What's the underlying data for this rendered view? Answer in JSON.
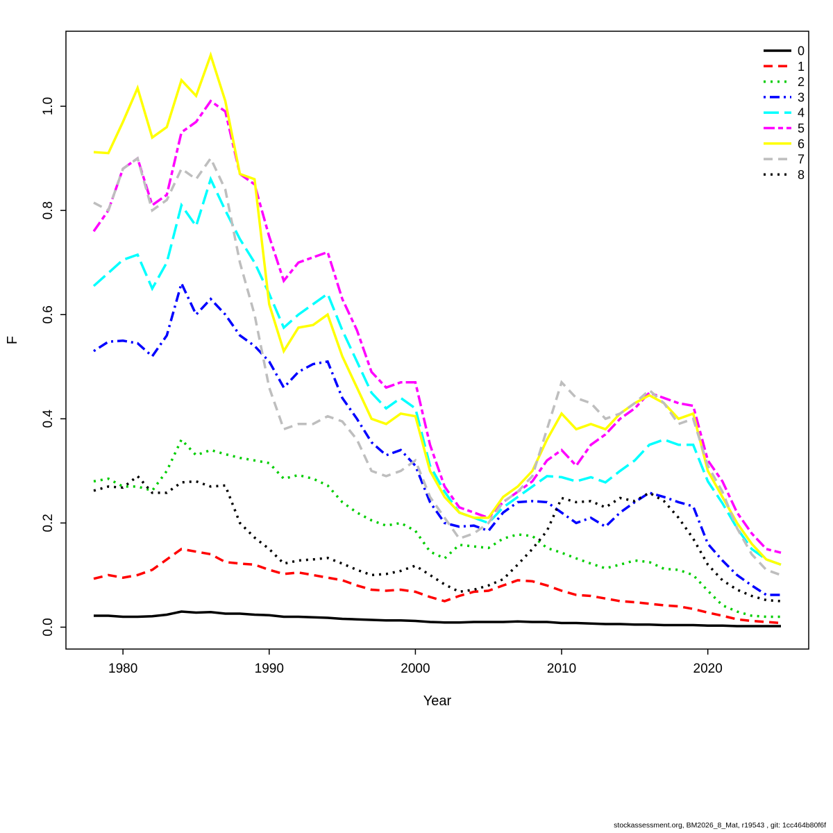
{
  "footer": "stockassessment.org, BM2026_8_Mat, r19543 , git: 1cc464b80f6f",
  "chart_data": {
    "type": "line",
    "title": "",
    "xlabel": "Year",
    "ylabel": "F",
    "x_ticks": [
      1980,
      1990,
      2000,
      2010,
      2020
    ],
    "y_ticks": [
      0.0,
      0.2,
      0.4,
      0.6,
      0.8,
      1.0
    ],
    "xlim": [
      1976.1,
      2026.9
    ],
    "ylim": [
      -0.042,
      1.144
    ],
    "grid": false,
    "legend_position": "topright",
    "x": [
      1978,
      1979,
      1980,
      1981,
      1982,
      1983,
      1984,
      1985,
      1986,
      1987,
      1988,
      1989,
      1990,
      1991,
      1992,
      1993,
      1994,
      1995,
      1996,
      1997,
      1998,
      1999,
      2000,
      2001,
      2002,
      2003,
      2004,
      2005,
      2006,
      2007,
      2008,
      2009,
      2010,
      2011,
      2012,
      2013,
      2014,
      2015,
      2016,
      2017,
      2018,
      2019,
      2020,
      2021,
      2022,
      2023,
      2024,
      2025
    ],
    "series": [
      {
        "name": "0",
        "color": "#000000",
        "linetype": "solid",
        "values": [
          0.022,
          0.022,
          0.02,
          0.02,
          0.021,
          0.024,
          0.03,
          0.028,
          0.029,
          0.026,
          0.026,
          0.024,
          0.023,
          0.02,
          0.02,
          0.019,
          0.018,
          0.016,
          0.015,
          0.014,
          0.013,
          0.013,
          0.012,
          0.01,
          0.009,
          0.009,
          0.01,
          0.01,
          0.01,
          0.011,
          0.01,
          0.01,
          0.008,
          0.008,
          0.007,
          0.006,
          0.006,
          0.005,
          0.005,
          0.004,
          0.004,
          0.004,
          0.003,
          0.003,
          0.002,
          0.002,
          0.002,
          0.002
        ]
      },
      {
        "name": "1",
        "color": "#FF0000",
        "linetype": "dashed",
        "values": [
          0.093,
          0.1,
          0.095,
          0.1,
          0.11,
          0.13,
          0.15,
          0.145,
          0.14,
          0.125,
          0.122,
          0.12,
          0.11,
          0.102,
          0.105,
          0.1,
          0.095,
          0.09,
          0.08,
          0.072,
          0.07,
          0.072,
          0.068,
          0.058,
          0.05,
          0.06,
          0.068,
          0.07,
          0.08,
          0.09,
          0.088,
          0.08,
          0.07,
          0.062,
          0.06,
          0.055,
          0.05,
          0.048,
          0.045,
          0.042,
          0.04,
          0.035,
          0.028,
          0.022,
          0.015,
          0.012,
          0.01,
          0.008
        ]
      },
      {
        "name": "2",
        "color": "#00CD00",
        "linetype": "dotted",
        "values": [
          0.28,
          0.285,
          0.27,
          0.27,
          0.262,
          0.3,
          0.36,
          0.33,
          0.34,
          0.332,
          0.325,
          0.32,
          0.315,
          0.285,
          0.292,
          0.285,
          0.272,
          0.24,
          0.22,
          0.205,
          0.195,
          0.2,
          0.185,
          0.145,
          0.132,
          0.158,
          0.155,
          0.152,
          0.17,
          0.178,
          0.175,
          0.152,
          0.143,
          0.132,
          0.122,
          0.113,
          0.12,
          0.128,
          0.125,
          0.112,
          0.11,
          0.1,
          0.07,
          0.042,
          0.03,
          0.022,
          0.02,
          0.02
        ]
      },
      {
        "name": "3",
        "color": "#0000FF",
        "linetype": "dotdash",
        "values": [
          0.53,
          0.548,
          0.55,
          0.545,
          0.52,
          0.56,
          0.66,
          0.6,
          0.63,
          0.6,
          0.56,
          0.54,
          0.51,
          0.46,
          0.49,
          0.505,
          0.51,
          0.44,
          0.4,
          0.355,
          0.33,
          0.34,
          0.31,
          0.24,
          0.2,
          0.193,
          0.195,
          0.185,
          0.22,
          0.24,
          0.242,
          0.24,
          0.22,
          0.2,
          0.21,
          0.193,
          0.22,
          0.24,
          0.258,
          0.25,
          0.24,
          0.232,
          0.16,
          0.128,
          0.1,
          0.08,
          0.062,
          0.062
        ]
      },
      {
        "name": "4",
        "color": "#00FFFF",
        "linetype": "longdash",
        "values": [
          0.655,
          0.68,
          0.705,
          0.715,
          0.65,
          0.7,
          0.81,
          0.77,
          0.86,
          0.8,
          0.745,
          0.7,
          0.64,
          0.575,
          0.6,
          0.62,
          0.64,
          0.57,
          0.51,
          0.45,
          0.42,
          0.44,
          0.42,
          0.31,
          0.26,
          0.22,
          0.21,
          0.2,
          0.23,
          0.25,
          0.27,
          0.29,
          0.288,
          0.28,
          0.288,
          0.278,
          0.3,
          0.32,
          0.35,
          0.36,
          0.35,
          0.35,
          0.28,
          0.238,
          0.19,
          0.15,
          0.13,
          0.12
        ]
      },
      {
        "name": "5",
        "color": "#FF00FF",
        "linetype": "twodash",
        "values": [
          0.76,
          0.8,
          0.88,
          0.9,
          0.81,
          0.83,
          0.95,
          0.97,
          1.01,
          0.99,
          0.87,
          0.85,
          0.75,
          0.665,
          0.7,
          0.71,
          0.72,
          0.63,
          0.57,
          0.49,
          0.46,
          0.47,
          0.47,
          0.35,
          0.27,
          0.23,
          0.22,
          0.21,
          0.24,
          0.26,
          0.28,
          0.32,
          0.34,
          0.31,
          0.35,
          0.37,
          0.4,
          0.42,
          0.45,
          0.44,
          0.43,
          0.425,
          0.32,
          0.28,
          0.22,
          0.18,
          0.15,
          0.143
        ]
      },
      {
        "name": "6",
        "color": "#FFFF00",
        "linetype": "solid",
        "values": [
          0.912,
          0.91,
          0.97,
          1.035,
          0.94,
          0.96,
          1.05,
          1.02,
          1.098,
          1.01,
          0.87,
          0.86,
          0.62,
          0.53,
          0.575,
          0.58,
          0.6,
          0.52,
          0.46,
          0.4,
          0.39,
          0.41,
          0.405,
          0.3,
          0.25,
          0.22,
          0.21,
          0.21,
          0.25,
          0.27,
          0.3,
          0.36,
          0.41,
          0.38,
          0.39,
          0.38,
          0.41,
          0.43,
          0.445,
          0.43,
          0.4,
          0.41,
          0.3,
          0.25,
          0.2,
          0.16,
          0.13,
          0.12
        ]
      },
      {
        "name": "7",
        "color": "#BEBEBE",
        "linetype": "dashed",
        "values": [
          0.815,
          0.8,
          0.88,
          0.9,
          0.8,
          0.82,
          0.88,
          0.86,
          0.9,
          0.84,
          0.7,
          0.6,
          0.46,
          0.38,
          0.39,
          0.39,
          0.405,
          0.395,
          0.36,
          0.3,
          0.29,
          0.3,
          0.32,
          0.25,
          0.21,
          0.17,
          0.18,
          0.2,
          0.24,
          0.26,
          0.29,
          0.38,
          0.47,
          0.44,
          0.43,
          0.4,
          0.41,
          0.43,
          0.455,
          0.43,
          0.39,
          0.4,
          0.31,
          0.26,
          0.19,
          0.14,
          0.11,
          0.1
        ]
      },
      {
        "name": "8",
        "color": "#000000",
        "linetype": "dotted",
        "values": [
          0.262,
          0.27,
          0.268,
          0.29,
          0.258,
          0.258,
          0.278,
          0.28,
          0.27,
          0.272,
          0.2,
          0.172,
          0.15,
          0.122,
          0.128,
          0.13,
          0.133,
          0.122,
          0.11,
          0.1,
          0.102,
          0.108,
          0.118,
          0.1,
          0.082,
          0.068,
          0.072,
          0.08,
          0.092,
          0.12,
          0.15,
          0.185,
          0.248,
          0.24,
          0.242,
          0.23,
          0.248,
          0.242,
          0.258,
          0.242,
          0.21,
          0.17,
          0.12,
          0.09,
          0.072,
          0.06,
          0.052,
          0.05
        ]
      }
    ]
  }
}
